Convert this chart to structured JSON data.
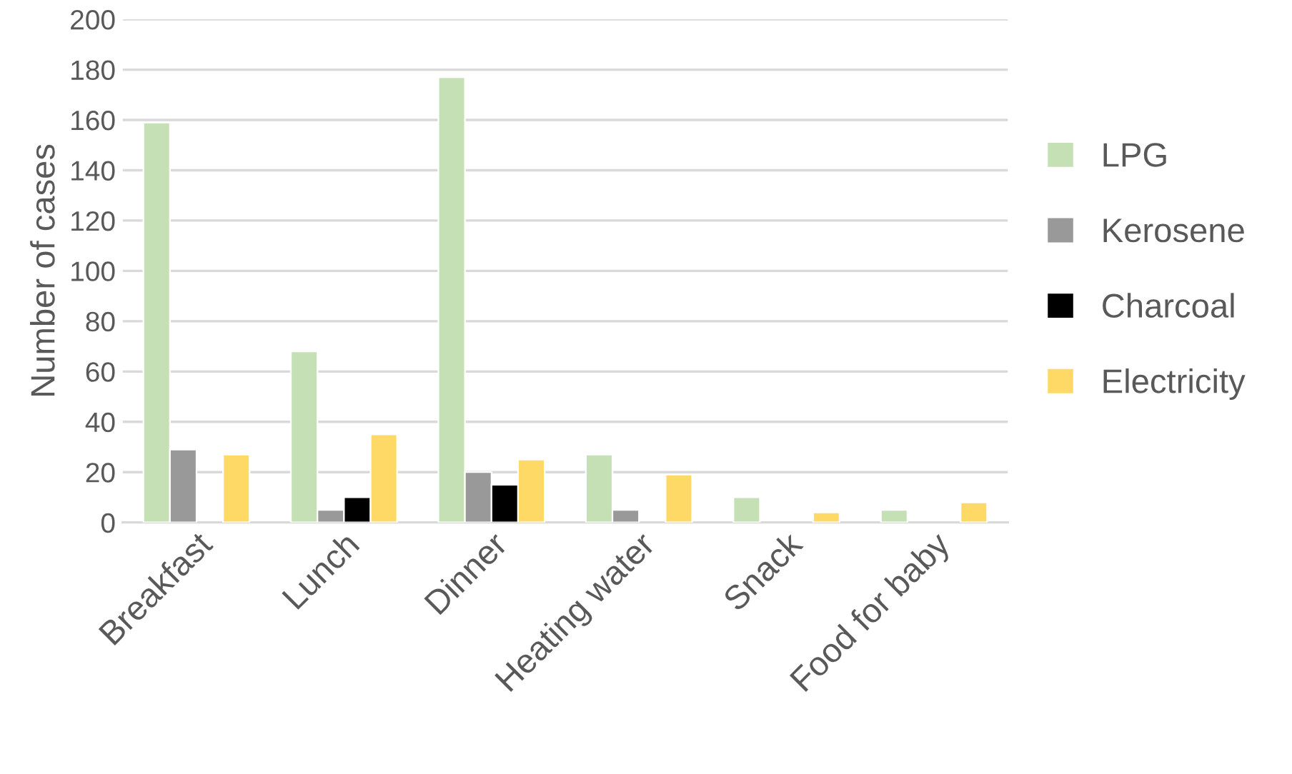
{
  "chart_data": {
    "type": "bar",
    "ylabel": "Number of cases",
    "categories": [
      "Breakfast",
      "Lunch",
      "Dinner",
      "Heating water",
      "Snack",
      "Food for baby"
    ],
    "series": [
      {
        "name": "LPG",
        "color": "#c5e0b4",
        "values": [
          159,
          68,
          177,
          27,
          10,
          5
        ]
      },
      {
        "name": "Kerosene",
        "color": "#999999",
        "values": [
          29,
          5,
          20,
          5,
          null,
          null
        ]
      },
      {
        "name": "Charcoal",
        "color": "#000000",
        "values": [
          null,
          10,
          15,
          null,
          null,
          null
        ]
      },
      {
        "name": "Electricity",
        "color": "#ffd966",
        "values": [
          27,
          35,
          25,
          19,
          4,
          8
        ]
      }
    ],
    "ylim": [
      0,
      200
    ],
    "yticks": [
      0,
      20,
      40,
      60,
      80,
      100,
      120,
      140,
      160,
      180,
      200
    ],
    "grid": "y",
    "legend": "right"
  }
}
